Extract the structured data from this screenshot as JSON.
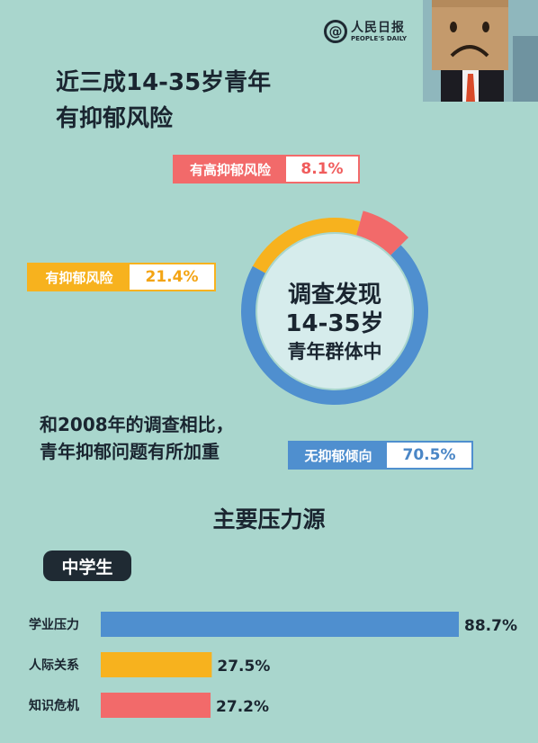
{
  "logo": {
    "cn": "人民日报",
    "en": "PEOPLE'S DAILY",
    "at": "@"
  },
  "headline": [
    "近三成14-35岁青年",
    "有抑郁风险"
  ],
  "tags": {
    "high_risk": {
      "label": "有高抑郁风险",
      "value": "8.1%"
    },
    "risk": {
      "label": "有抑郁风险",
      "value": "21.4%"
    },
    "none": {
      "label": "无抑郁倾向",
      "value": "70.5%"
    }
  },
  "center": {
    "line1": "调查发现",
    "line2": "14-35岁",
    "line3": "青年群体中"
  },
  "comparison": [
    "和2008年的调查相比，",
    "青年抑郁问题有所加重"
  ],
  "section_title": "主要压力源",
  "group_label": "中学生",
  "colors": {
    "red": "#f26a6a",
    "yellow": "#f7b21e",
    "blue": "#4f8fcf",
    "background": "#a9d6cd"
  },
  "chart_data": [
    {
      "type": "pie",
      "categories": [
        "有高抑郁风险",
        "有抑郁风险",
        "无抑郁倾向"
      ],
      "values": [
        8.1,
        21.4,
        70.5
      ],
      "colors": [
        "#f26a6a",
        "#f7b21e",
        "#4f8fcf"
      ]
    },
    {
      "type": "bar",
      "orientation": "horizontal",
      "categories": [
        "学业压力",
        "人际关系",
        "知识危机"
      ],
      "values": [
        88.7,
        27.5,
        27.2
      ],
      "value_labels": [
        "88.7%",
        "27.5%",
        "27.2%"
      ],
      "colors": [
        "#4f8fcf",
        "#f7b21e",
        "#f26a6a"
      ]
    }
  ]
}
